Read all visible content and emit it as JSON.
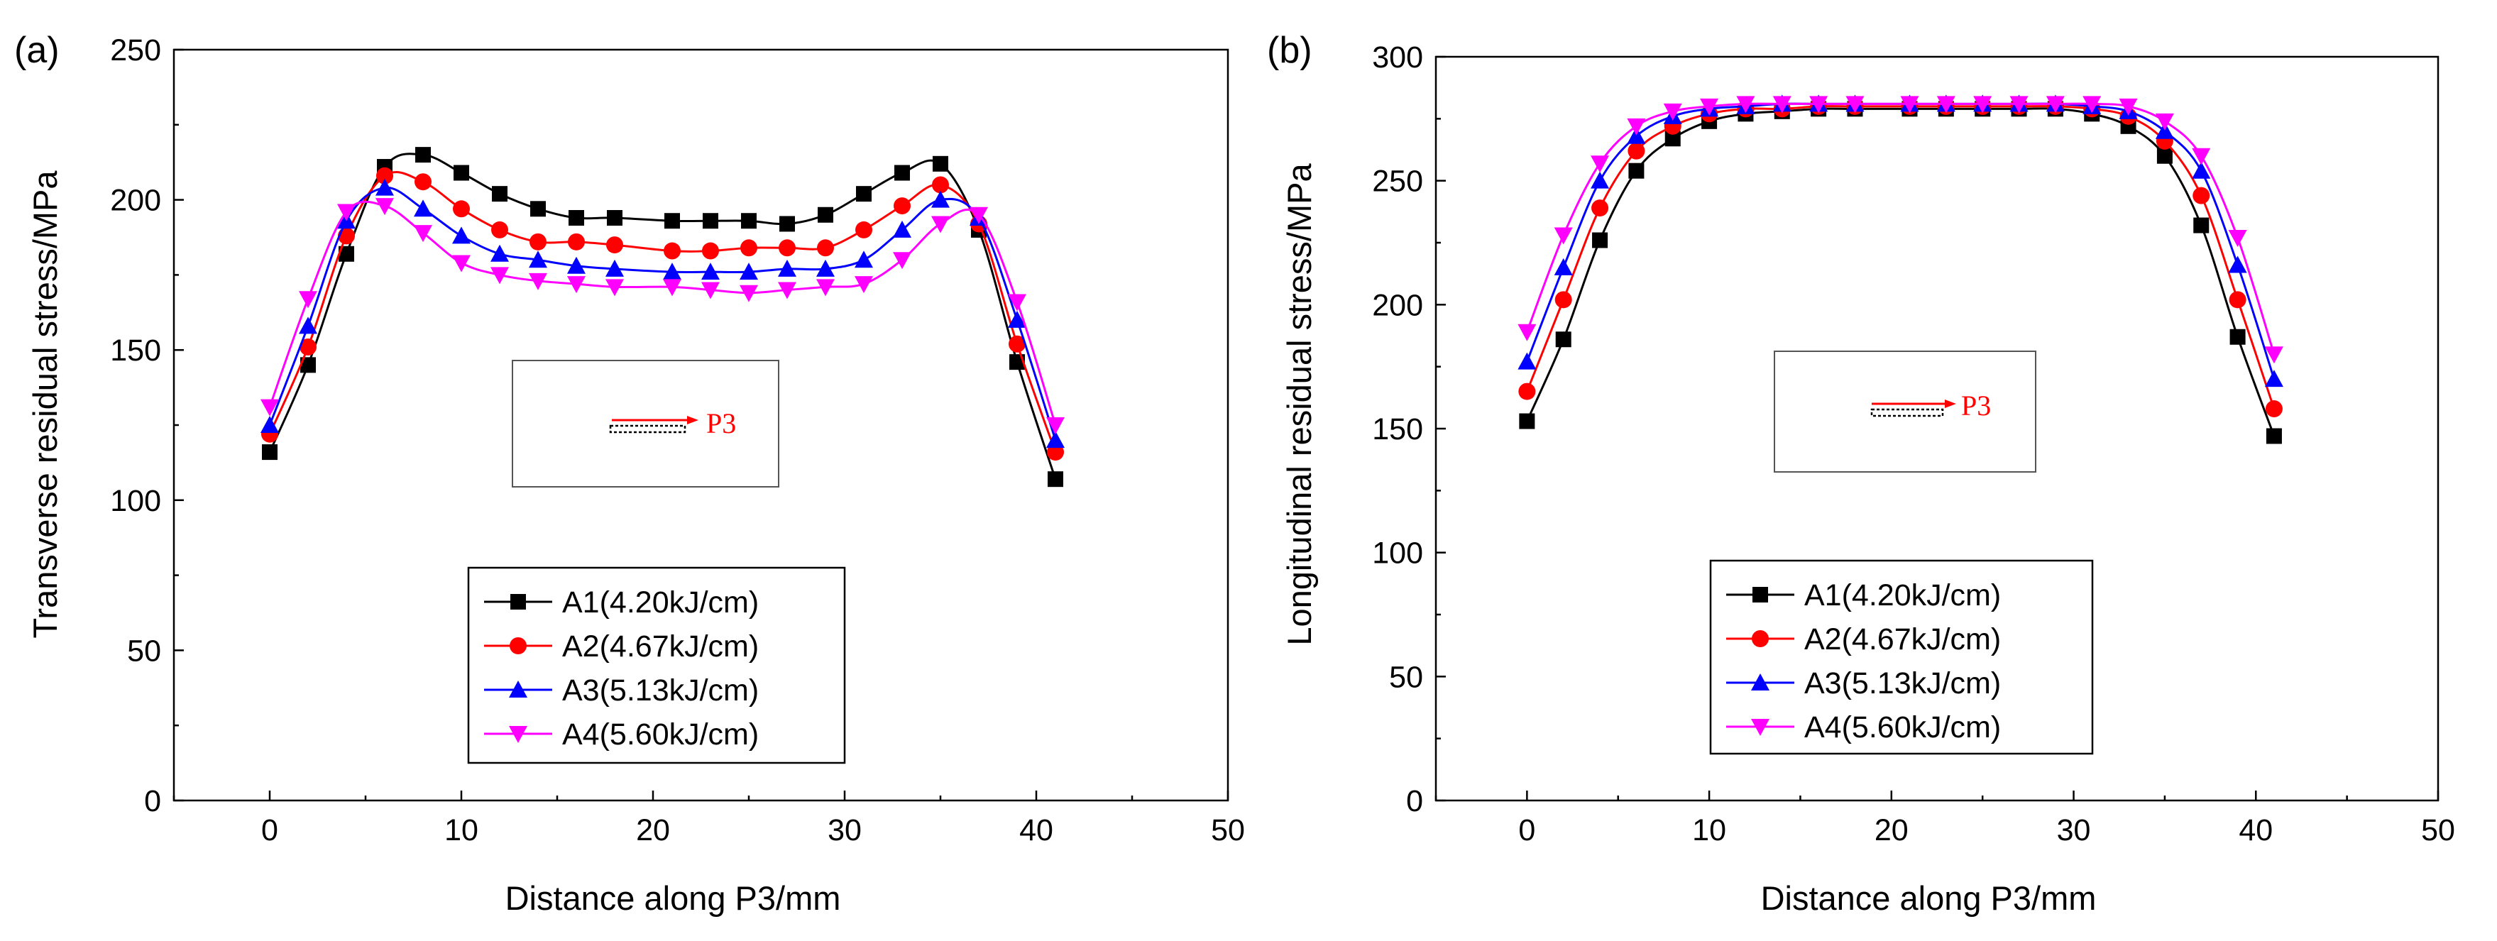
{
  "chart_data": [
    {
      "panel_label": "(a)",
      "type": "line",
      "xlabel": "Distance along P3/mm",
      "ylabel": "Transverse residual stress/MPa",
      "xlim": [
        -5,
        50
      ],
      "ylim": [
        0,
        250
      ],
      "xticks": [
        "0",
        "10",
        "20",
        "30",
        "40",
        "50"
      ],
      "yticks": [
        "0",
        "50",
        "100",
        "150",
        "200",
        "250"
      ],
      "inset_label": "P3",
      "legend_position": "bottom-center",
      "x": [
        0,
        2,
        4,
        6,
        8,
        10,
        12,
        14,
        16,
        18,
        21,
        23,
        25,
        27,
        29,
        31,
        33,
        35,
        37,
        39,
        41
      ],
      "series": [
        {
          "name": "A1(4.20kJ/cm)",
          "color": "#000000",
          "marker": "square",
          "values": [
            116,
            145,
            182,
            211,
            215,
            209,
            202,
            197,
            194,
            194,
            193,
            193,
            193,
            192,
            195,
            202,
            209,
            212,
            190,
            146,
            107
          ]
        },
        {
          "name": "A2(4.67kJ/cm)",
          "color": "#ff0000",
          "marker": "circle",
          "values": [
            122,
            151,
            188,
            208,
            206,
            197,
            190,
            186,
            186,
            185,
            183,
            183,
            184,
            184,
            184,
            190,
            198,
            205,
            192,
            152,
            116
          ]
        },
        {
          "name": "A3(5.13kJ/cm)",
          "color": "#0000ff",
          "marker": "triangle-up",
          "values": [
            125,
            158,
            193,
            204,
            197,
            188,
            182,
            180,
            178,
            177,
            176,
            176,
            176,
            177,
            177,
            180,
            190,
            200,
            194,
            160,
            120
          ]
        },
        {
          "name": "A4(5.60kJ/cm)",
          "color": "#ff00ff",
          "marker": "triangle-down",
          "values": [
            131,
            167,
            196,
            198,
            189,
            179,
            175,
            173,
            172,
            171,
            171,
            170,
            169,
            170,
            171,
            172,
            180,
            192,
            195,
            166,
            125
          ]
        }
      ]
    },
    {
      "panel_label": "(b)",
      "type": "line",
      "xlabel": "Distance along P3/mm",
      "ylabel": "Longitudinal residual stress/MPa",
      "xlim": [
        -5,
        50
      ],
      "ylim": [
        0,
        300
      ],
      "xticks": [
        "0",
        "10",
        "20",
        "30",
        "40",
        "50"
      ],
      "yticks": [
        "0",
        "50",
        "100",
        "150",
        "200",
        "250",
        "300"
      ],
      "inset_label": "P3",
      "legend_position": "bottom-center",
      "x": [
        0,
        2,
        4,
        6,
        8,
        10,
        12,
        14,
        16,
        18,
        21,
        23,
        25,
        27,
        29,
        31,
        33,
        35,
        37,
        39,
        41
      ],
      "series": [
        {
          "name": "A1(4.20kJ/cm)",
          "color": "#000000",
          "marker": "square",
          "values": [
            153,
            186,
            226,
            254,
            267,
            274,
            277,
            278,
            279,
            279,
            279,
            279,
            279,
            279,
            279,
            277,
            272,
            260,
            232,
            187,
            147
          ]
        },
        {
          "name": "A2(4.67kJ/cm)",
          "color": "#ff0000",
          "marker": "circle",
          "values": [
            165,
            202,
            239,
            262,
            272,
            277,
            279,
            279,
            280,
            280,
            280,
            280,
            280,
            280,
            280,
            279,
            276,
            266,
            244,
            202,
            158
          ]
        },
        {
          "name": "A3(5.13kJ/cm)",
          "color": "#0000ff",
          "marker": "triangle-up",
          "values": [
            177,
            215,
            250,
            268,
            276,
            279,
            280,
            281,
            281,
            281,
            281,
            281,
            281,
            281,
            281,
            280,
            278,
            270,
            254,
            216,
            170
          ]
        },
        {
          "name": "A4(5.60kJ/cm)",
          "color": "#ff00ff",
          "marker": "triangle-down",
          "values": [
            189,
            228,
            257,
            272,
            278,
            280,
            281,
            281,
            281,
            281,
            281,
            281,
            281,
            281,
            281,
            281,
            280,
            274,
            260,
            227,
            180
          ]
        }
      ]
    }
  ]
}
